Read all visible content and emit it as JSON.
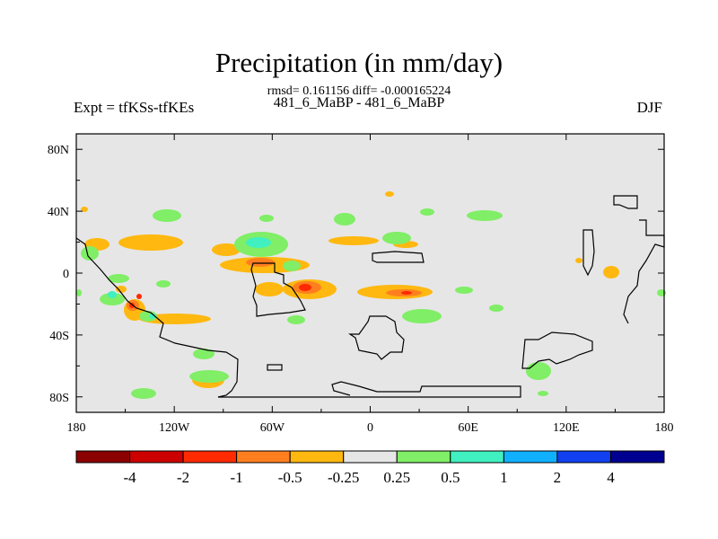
{
  "chart_data": {
    "type": "heatmap",
    "title": "Precipitation (in mm/day)",
    "subtitle": "rmsd= 0.161156  diff= -0.000165224",
    "center_label": "481_6_MaBP - 481_6_MaBP",
    "left_label": "Expt = tfKSs-tfKEs",
    "right_label": "DJF",
    "x_ticks": [
      "180",
      "120W",
      "60W",
      "0",
      "60E",
      "120E",
      "180"
    ],
    "x_tick_values": [
      -180,
      -120,
      -60,
      0,
      60,
      120,
      180
    ],
    "y_ticks": [
      "80N",
      "40N",
      "0",
      "40S",
      "80S"
    ],
    "y_tick_values": [
      80,
      40,
      0,
      -40,
      -80
    ],
    "xlim": [
      -180,
      180
    ],
    "ylim": [
      -90,
      90
    ],
    "colorbar": {
      "labels": [
        "-4",
        "-2",
        "-1",
        "-0.5",
        "-0.25",
        "0.25",
        "0.5",
        "1",
        "2",
        "4"
      ],
      "colors": [
        "#8b0000",
        "#cc0000",
        "#ff2a00",
        "#ff7f1f",
        "#ffb810",
        "#e6e6e6",
        "#80ee66",
        "#40f0c0",
        "#10b0ff",
        "#1040f0",
        "#000090"
      ]
    },
    "background_color": "#e6e6e6"
  }
}
